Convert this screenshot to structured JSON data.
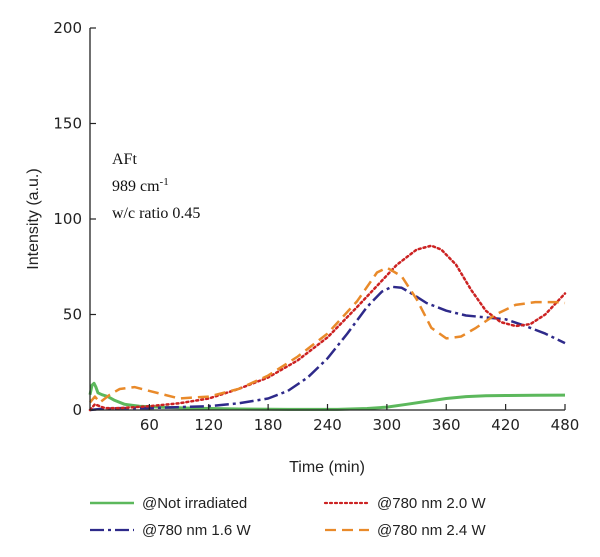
{
  "chart_data": {
    "type": "line",
    "xlabel": "Time (min)",
    "ylabel": "Intensity (a.u.)",
    "xlim": [
      0,
      480
    ],
    "ylim": [
      0,
      200
    ],
    "x_ticks": [
      60,
      120,
      180,
      240,
      300,
      360,
      420,
      480
    ],
    "y_ticks": [
      0,
      50,
      100,
      150,
      200
    ],
    "grid": false,
    "legend_position": "bottom",
    "annotation": {
      "line1": "AFt",
      "line2_main": "989 cm",
      "line2_sup": "-1",
      "line3": "w/c ratio 0.45"
    },
    "series": [
      {
        "name": "@Not irradiated",
        "color": "#5cb85c",
        "dash": "solid",
        "x": [
          0,
          2,
          4,
          6,
          8,
          12,
          18,
          25,
          35,
          50,
          70,
          100,
          150,
          200,
          250,
          280,
          300,
          320,
          340,
          360,
          380,
          400,
          420,
          450,
          480
        ],
        "y": [
          8,
          13,
          14,
          12,
          9,
          8,
          7,
          5,
          3,
          2,
          1.5,
          1,
          0.5,
          0.3,
          0.3,
          0.8,
          1.5,
          3,
          4.5,
          6,
          7,
          7.5,
          7.6,
          7.7,
          7.8
        ]
      },
      {
        "name": "@780 nm 1.6 W",
        "color": "#2e2a8a",
        "dash": "dashdot",
        "x": [
          0,
          10,
          30,
          60,
          90,
          120,
          150,
          180,
          200,
          220,
          240,
          260,
          280,
          295,
          305,
          315,
          325,
          340,
          360,
          380,
          400,
          420,
          440,
          460,
          480
        ],
        "y": [
          0,
          0.5,
          1,
          1,
          1.5,
          2,
          3.5,
          6,
          10,
          17,
          27,
          40,
          54,
          62,
          64.5,
          64,
          61,
          56,
          52,
          49.5,
          48.5,
          47.5,
          44,
          40,
          35
        ]
      },
      {
        "name": "@780 nm 2.0 W",
        "color": "#cc2222",
        "dash": "dotted",
        "x": [
          0,
          5,
          15,
          30,
          60,
          90,
          120,
          150,
          180,
          210,
          240,
          270,
          290,
          310,
          330,
          345,
          355,
          370,
          385,
          400,
          415,
          430,
          445,
          460,
          480
        ],
        "y": [
          0,
          3,
          1,
          1,
          2,
          3.5,
          6,
          11,
          17,
          26,
          38,
          54,
          65,
          76,
          84,
          86,
          84,
          76,
          63,
          52,
          46,
          44,
          45,
          50,
          61
        ]
      },
      {
        "name": "@780 nm 2.4 W",
        "color": "#e98a2a",
        "dash": "dashed",
        "x": [
          0,
          5,
          10,
          20,
          30,
          45,
          60,
          90,
          120,
          150,
          180,
          210,
          240,
          270,
          290,
          300,
          315,
          330,
          345,
          360,
          375,
          390,
          410,
          430,
          450,
          470,
          480
        ],
        "y": [
          4,
          7,
          4,
          8,
          11,
          12,
          10,
          6,
          7,
          11,
          18,
          28,
          40,
          57,
          72,
          74.5,
          70,
          58,
          43,
          37.5,
          38.5,
          43,
          50,
          55,
          56.5,
          56.5,
          56
        ]
      }
    ]
  }
}
